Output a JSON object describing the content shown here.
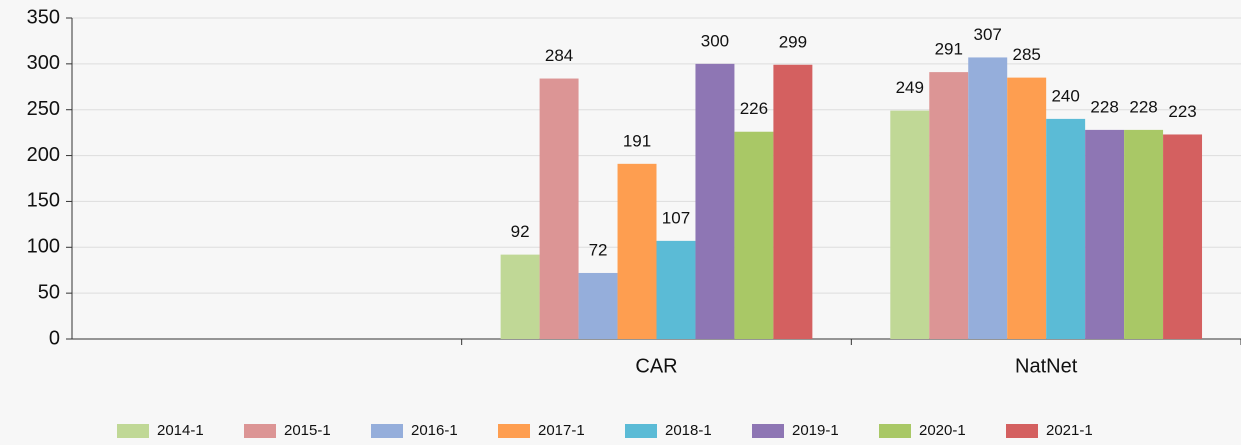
{
  "chart_data": {
    "type": "bar",
    "categories": [
      null,
      "CAR",
      "NatNet"
    ],
    "series": [
      {
        "name": "2014-1",
        "color": "#c0d896",
        "values": [
          null,
          92,
          249
        ]
      },
      {
        "name": "2015-1",
        "color": "#dc9595",
        "values": [
          null,
          284,
          291
        ]
      },
      {
        "name": "2016-1",
        "color": "#95aedb",
        "values": [
          null,
          72,
          307
        ]
      },
      {
        "name": "2017-1",
        "color": "#fe9e50",
        "values": [
          null,
          191,
          285
        ]
      },
      {
        "name": "2018-1",
        "color": "#5bbbd6",
        "values": [
          null,
          107,
          240
        ]
      },
      {
        "name": "2019-1",
        "color": "#8e76b4",
        "values": [
          null,
          300,
          228
        ]
      },
      {
        "name": "2020-1",
        "color": "#a9c866",
        "values": [
          null,
          226,
          228
        ]
      },
      {
        "name": "2021-1",
        "color": "#d46060",
        "values": [
          null,
          299,
          223
        ]
      }
    ],
    "ylim": [
      0,
      350
    ],
    "yticks": [
      0,
      50,
      100,
      150,
      200,
      250,
      300,
      350
    ],
    "grid": true,
    "legend": "bottom"
  }
}
